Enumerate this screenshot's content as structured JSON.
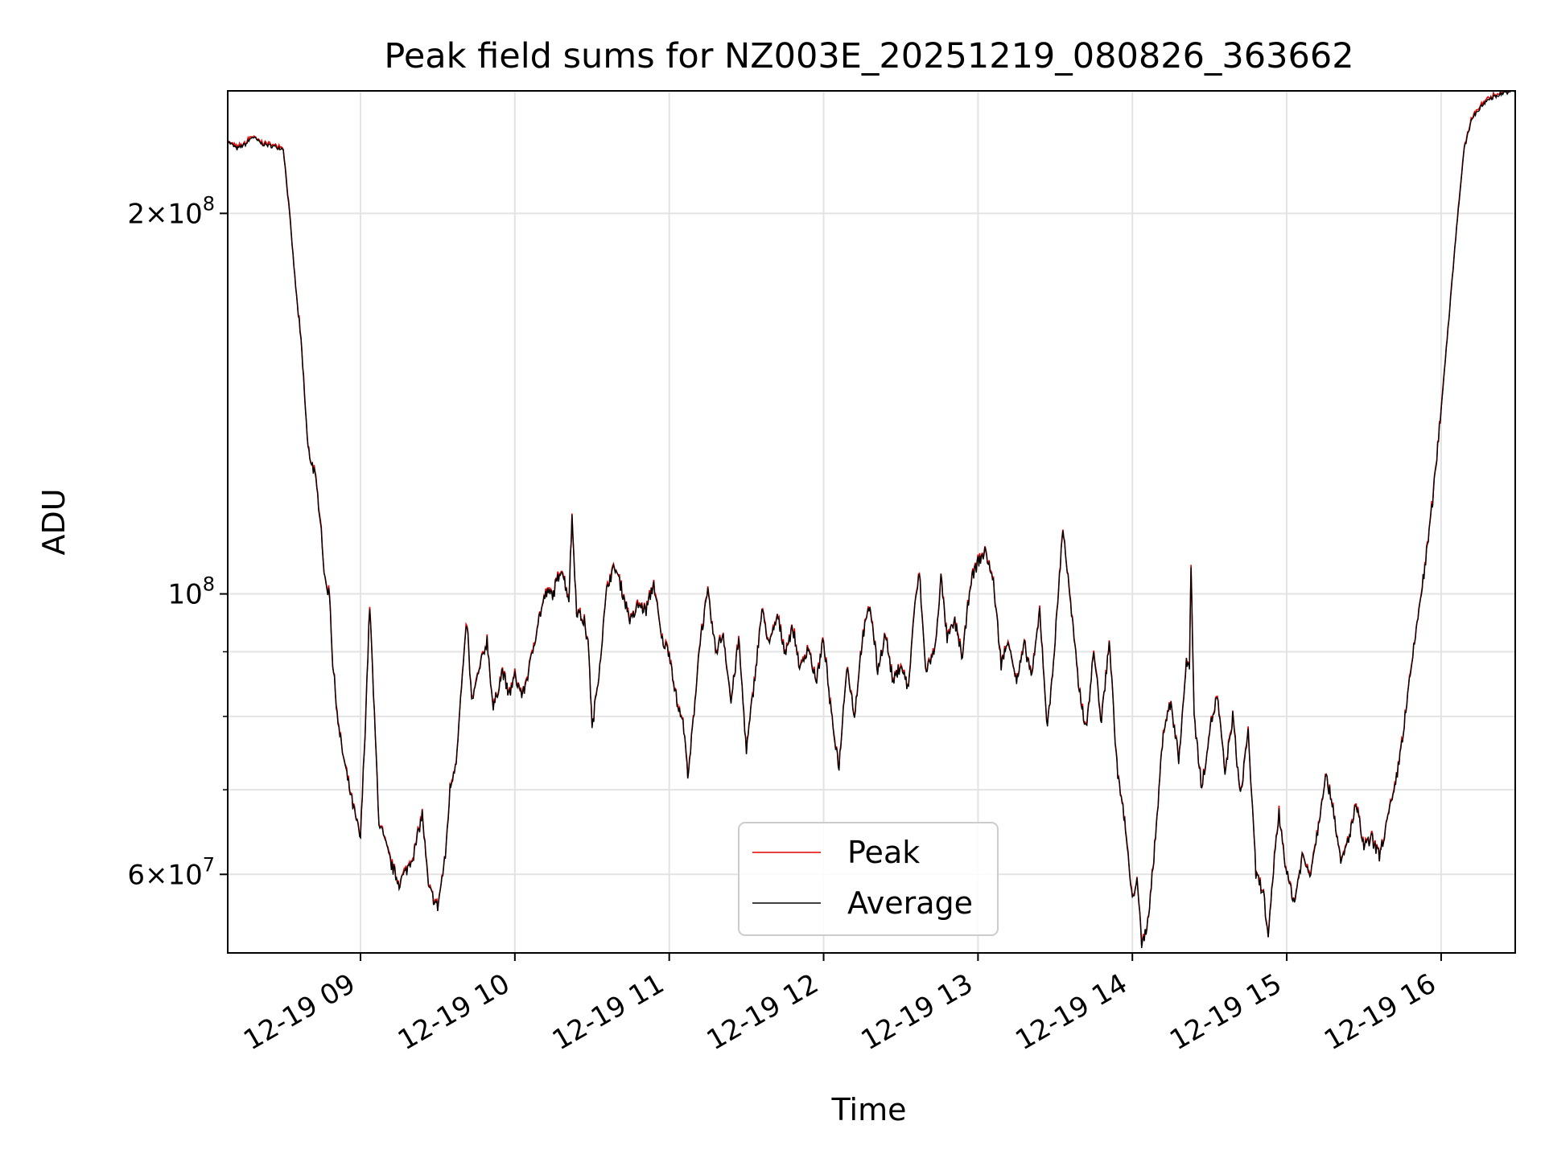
{
  "chart_data": {
    "type": "line",
    "title": "Peak field sums for NZ003E_20251219_080826_363662",
    "xlabel": "Time",
    "ylabel": "ADU",
    "y_scale": "log",
    "xlim_hours": [
      8.14,
      16.48
    ],
    "ylim": [
      52000000,
      250000000
    ],
    "grid": true,
    "legend_position": "lower center",
    "x_ticks": [
      {
        "value": 9,
        "label": "12-19 09"
      },
      {
        "value": 10,
        "label": "12-19 10"
      },
      {
        "value": 11,
        "label": "12-19 11"
      },
      {
        "value": 12,
        "label": "12-19 12"
      },
      {
        "value": 13,
        "label": "12-19 13"
      },
      {
        "value": 14,
        "label": "12-19 14"
      },
      {
        "value": 15,
        "label": "12-19 15"
      },
      {
        "value": 16,
        "label": "12-19 16"
      }
    ],
    "y_major_ticks": [
      {
        "value": 60000000,
        "mantissa": "6",
        "base": "10",
        "exponent": "7"
      },
      {
        "value": 100000000,
        "mantissa": "",
        "base": "10",
        "exponent": "8"
      },
      {
        "value": 200000000,
        "mantissa": "2",
        "base": "10",
        "exponent": "8"
      }
    ],
    "y_minor_ticks": [
      70000000,
      80000000,
      90000000
    ],
    "legend": [
      {
        "name": "Peak",
        "color": "#e00000"
      },
      {
        "name": "Average",
        "color": "#000000"
      }
    ],
    "series_color_peak": "#e00000",
    "series_color_average": "#000000",
    "anchors": [
      [
        8.14,
        228000000.0
      ],
      [
        8.2,
        225000000.0
      ],
      [
        8.26,
        227000000.0
      ],
      [
        8.3,
        230000000.0
      ],
      [
        8.36,
        227000000.0
      ],
      [
        8.5,
        225000000.0
      ],
      [
        8.54,
        200000000.0
      ],
      [
        8.58,
        175000000.0
      ],
      [
        8.62,
        155000000.0
      ],
      [
        8.66,
        130000000.0
      ],
      [
        8.7,
        125000000.0
      ],
      [
        8.74,
        115000000.0
      ],
      [
        8.77,
        102000000.0
      ],
      [
        8.8,
        100000000.0
      ],
      [
        8.82,
        88000000.0
      ],
      [
        8.86,
        78000000.0
      ],
      [
        8.9,
        73000000.0
      ],
      [
        8.95,
        68000000.0
      ],
      [
        9.0,
        64000000.0
      ],
      [
        9.03,
        78000000.0
      ],
      [
        9.06,
        98000000.0
      ],
      [
        9.09,
        80000000.0
      ],
      [
        9.12,
        66000000.0
      ],
      [
        9.2,
        61000000.0
      ],
      [
        9.25,
        59000000.0
      ],
      [
        9.3,
        60500000.0
      ],
      [
        9.35,
        62500000.0
      ],
      [
        9.4,
        67000000.0
      ],
      [
        9.44,
        58500000.0
      ],
      [
        9.5,
        56500000.0
      ],
      [
        9.55,
        62000000.0
      ],
      [
        9.58,
        70000000.0
      ],
      [
        9.62,
        74000000.0
      ],
      [
        9.66,
        86000000.0
      ],
      [
        9.69,
        95000000.0
      ],
      [
        9.72,
        82000000.0
      ],
      [
        9.78,
        88000000.0
      ],
      [
        9.82,
        92000000.0
      ],
      [
        9.86,
        81000000.0
      ],
      [
        9.92,
        87000000.0
      ],
      [
        9.96,
        83000000.0
      ],
      [
        10.0,
        86000000.0
      ],
      [
        10.05,
        83000000.0
      ],
      [
        10.1,
        88000000.0
      ],
      [
        10.15,
        95000000.0
      ],
      [
        10.2,
        100000000.0
      ],
      [
        10.25,
        100000000.0
      ],
      [
        10.3,
        105000000.0
      ],
      [
        10.35,
        99000000.0
      ],
      [
        10.37,
        115000000.0
      ],
      [
        10.4,
        97000000.0
      ],
      [
        10.45,
        95000000.0
      ],
      [
        10.48,
        90000000.0
      ],
      [
        10.5,
        78000000.0
      ],
      [
        10.55,
        88000000.0
      ],
      [
        10.6,
        102000000.0
      ],
      [
        10.65,
        105000000.0
      ],
      [
        10.7,
        100000000.0
      ],
      [
        10.75,
        95000000.0
      ],
      [
        10.8,
        98000000.0
      ],
      [
        10.85,
        97000000.0
      ],
      [
        10.9,
        102000000.0
      ],
      [
        10.95,
        92000000.0
      ],
      [
        11.0,
        90000000.0
      ],
      [
        11.05,
        82000000.0
      ],
      [
        11.1,
        78000000.0
      ],
      [
        11.12,
        71000000.0
      ],
      [
        11.15,
        78000000.0
      ],
      [
        11.2,
        92000000.0
      ],
      [
        11.25,
        100000000.0
      ],
      [
        11.3,
        90000000.0
      ],
      [
        11.35,
        93000000.0
      ],
      [
        11.4,
        82000000.0
      ],
      [
        11.45,
        92000000.0
      ],
      [
        11.5,
        75000000.0
      ],
      [
        11.55,
        85000000.0
      ],
      [
        11.6,
        97000000.0
      ],
      [
        11.65,
        91000000.0
      ],
      [
        11.7,
        96000000.0
      ],
      [
        11.75,
        90000000.0
      ],
      [
        11.8,
        94000000.0
      ],
      [
        11.85,
        87000000.0
      ],
      [
        11.9,
        91000000.0
      ],
      [
        11.95,
        85000000.0
      ],
      [
        12.0,
        92000000.0
      ],
      [
        12.05,
        80000000.0
      ],
      [
        12.1,
        73000000.0
      ],
      [
        12.15,
        88000000.0
      ],
      [
        12.2,
        80000000.0
      ],
      [
        12.25,
        92000000.0
      ],
      [
        12.3,
        98000000.0
      ],
      [
        12.35,
        87000000.0
      ],
      [
        12.4,
        93000000.0
      ],
      [
        12.45,
        85000000.0
      ],
      [
        12.5,
        88000000.0
      ],
      [
        12.55,
        84000000.0
      ],
      [
        12.58,
        95000000.0
      ],
      [
        12.62,
        104000000.0
      ],
      [
        12.66,
        87000000.0
      ],
      [
        12.72,
        90000000.0
      ],
      [
        12.76,
        103000000.0
      ],
      [
        12.8,
        92000000.0
      ],
      [
        12.85,
        95000000.0
      ],
      [
        12.9,
        89000000.0
      ],
      [
        12.95,
        102000000.0
      ],
      [
        13.0,
        106000000.0
      ],
      [
        13.05,
        108000000.0
      ],
      [
        13.1,
        102000000.0
      ],
      [
        13.15,
        88000000.0
      ],
      [
        13.2,
        92000000.0
      ],
      [
        13.25,
        85000000.0
      ],
      [
        13.3,
        91000000.0
      ],
      [
        13.35,
        86000000.0
      ],
      [
        13.4,
        97000000.0
      ],
      [
        13.45,
        78000000.0
      ],
      [
        13.5,
        92000000.0
      ],
      [
        13.55,
        113000000.0
      ],
      [
        13.6,
        98000000.0
      ],
      [
        13.65,
        85000000.0
      ],
      [
        13.7,
        78000000.0
      ],
      [
        13.75,
        90000000.0
      ],
      [
        13.8,
        79000000.0
      ],
      [
        13.85,
        92000000.0
      ],
      [
        13.9,
        73000000.0
      ],
      [
        13.95,
        66000000.0
      ],
      [
        14.0,
        57000000.0
      ],
      [
        14.03,
        60000000.0
      ],
      [
        14.06,
        52500000.0
      ],
      [
        14.1,
        55000000.0
      ],
      [
        14.15,
        64000000.0
      ],
      [
        14.2,
        78000000.0
      ],
      [
        14.25,
        82000000.0
      ],
      [
        14.3,
        74000000.0
      ],
      [
        14.35,
        88000000.0
      ],
      [
        14.37,
        88000000.0
      ],
      [
        14.38,
        106000000.0
      ],
      [
        14.4,
        80000000.0
      ],
      [
        14.45,
        70000000.0
      ],
      [
        14.5,
        78000000.0
      ],
      [
        14.55,
        83000000.0
      ],
      [
        14.6,
        72000000.0
      ],
      [
        14.65,
        80000000.0
      ],
      [
        14.7,
        69000000.0
      ],
      [
        14.75,
        78000000.0
      ],
      [
        14.8,
        60000000.0
      ],
      [
        14.85,
        58000000.0
      ],
      [
        14.88,
        53000000.0
      ],
      [
        14.92,
        62000000.0
      ],
      [
        14.95,
        67000000.0
      ],
      [
        15.0,
        60000000.0
      ],
      [
        15.05,
        57000000.0
      ],
      [
        15.1,
        62000000.0
      ],
      [
        15.15,
        60000000.0
      ],
      [
        15.2,
        65000000.0
      ],
      [
        15.25,
        72000000.0
      ],
      [
        15.3,
        68000000.0
      ],
      [
        15.35,
        61000000.0
      ],
      [
        15.4,
        64000000.0
      ],
      [
        15.45,
        68000000.0
      ],
      [
        15.5,
        63000000.0
      ],
      [
        15.55,
        64000000.0
      ],
      [
        15.6,
        62000000.0
      ],
      [
        15.65,
        66000000.0
      ],
      [
        15.7,
        70000000.0
      ],
      [
        15.75,
        77000000.0
      ],
      [
        15.8,
        86000000.0
      ],
      [
        15.85,
        96000000.0
      ],
      [
        15.9,
        106000000.0
      ],
      [
        15.95,
        120000000.0
      ],
      [
        16.0,
        140000000.0
      ],
      [
        16.05,
        165000000.0
      ],
      [
        16.1,
        195000000.0
      ],
      [
        16.15,
        225000000.0
      ],
      [
        16.2,
        238000000.0
      ],
      [
        16.3,
        246000000.0
      ],
      [
        16.4,
        249000000.0
      ],
      [
        16.48,
        250000000.0
      ]
    ]
  }
}
